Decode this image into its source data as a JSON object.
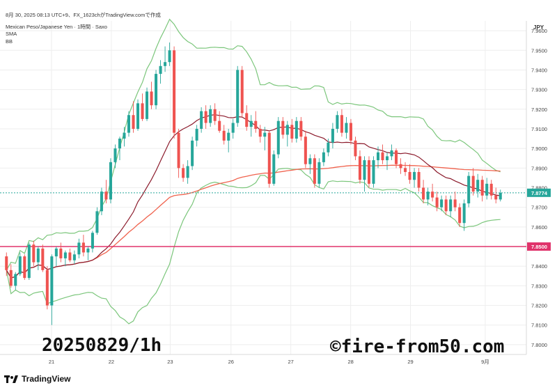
{
  "header": {
    "timestamp_line": "8月 30, 2025 08:13 UTC+9、FX_1623chがTradingView.comで作成",
    "symbol_line": "Mexican Peso/Japanese Yen · 1時間 · Saxo",
    "indicator_1": "SMA",
    "indicator_2": "BB"
  },
  "currency_label": "JPY",
  "overlay_text": {
    "left": "20250829/1h",
    "right": "©fire-from50.com"
  },
  "footer": {
    "brand": "TradingView"
  },
  "colors": {
    "up_candle": "#26a69a",
    "down_candle": "#ef5350",
    "sma_fast": "#8b1a2b",
    "sma_slow": "#f0624d",
    "bb_bands": "#7bc67b",
    "support_line": "#e0336b",
    "last_price_line": "#26a69a",
    "grid": "#eeeeee"
  },
  "chart_data": {
    "type": "candlestick",
    "y_ticks": [
      "7.9600",
      "7.9500",
      "7.9400",
      "7.9300",
      "7.9200",
      "7.9100",
      "7.9000",
      "7.8900",
      "7.8800",
      "7.8700",
      "7.8600",
      "7.8400",
      "7.8300",
      "7.8200",
      "7.8100",
      "7.8000"
    ],
    "ylim": [
      7.795,
      7.965
    ],
    "x_ticks": [
      {
        "label": "21",
        "pos": 0.095
      },
      {
        "label": "22",
        "pos": 0.215
      },
      {
        "label": "23",
        "pos": 0.333
      },
      {
        "label": "26",
        "pos": 0.455
      },
      {
        "label": "27",
        "pos": 0.575
      },
      {
        "label": "28",
        "pos": 0.695
      },
      {
        "label": "29",
        "pos": 0.815
      },
      {
        "label": "9月",
        "pos": 0.965
      }
    ],
    "last_price": {
      "label": "7.8774",
      "value": 7.8774
    },
    "support_level": {
      "label": "7.8500",
      "value": 7.85
    },
    "candles": [
      [
        7.845,
        7.847,
        7.835,
        7.838
      ],
      [
        7.838,
        7.841,
        7.829,
        7.83
      ],
      [
        7.83,
        7.837,
        7.828,
        7.836
      ],
      [
        7.836,
        7.847,
        7.835,
        7.845
      ],
      [
        7.845,
        7.846,
        7.833,
        7.834
      ],
      [
        7.834,
        7.852,
        7.833,
        7.851
      ],
      [
        7.851,
        7.853,
        7.84,
        7.842
      ],
      [
        7.842,
        7.85,
        7.838,
        7.849
      ],
      [
        7.849,
        7.851,
        7.837,
        7.838
      ],
      [
        7.838,
        7.84,
        7.818,
        7.82
      ],
      [
        7.82,
        7.846,
        7.81,
        7.845
      ],
      [
        7.845,
        7.85,
        7.84,
        7.849
      ],
      [
        7.849,
        7.852,
        7.842,
        7.844
      ],
      [
        7.844,
        7.848,
        7.84,
        7.847
      ],
      [
        7.847,
        7.849,
        7.842,
        7.843
      ],
      [
        7.843,
        7.848,
        7.841,
        7.846
      ],
      [
        7.846,
        7.854,
        7.844,
        7.852
      ],
      [
        7.852,
        7.856,
        7.845,
        7.847
      ],
      [
        7.847,
        7.85,
        7.843,
        7.849
      ],
      [
        7.849,
        7.858,
        7.847,
        7.857
      ],
      [
        7.857,
        7.87,
        7.856,
        7.868
      ],
      [
        7.868,
        7.88,
        7.866,
        7.878
      ],
      [
        7.878,
        7.884,
        7.872,
        7.874
      ],
      [
        7.874,
        7.895,
        7.872,
        7.893
      ],
      [
        7.893,
        7.902,
        7.89,
        7.9
      ],
      [
        7.9,
        7.906,
        7.894,
        7.905
      ],
      [
        7.905,
        7.911,
        7.901,
        7.908
      ],
      [
        7.908,
        7.919,
        7.906,
        7.917
      ],
      [
        7.917,
        7.924,
        7.908,
        7.91
      ],
      [
        7.91,
        7.925,
        7.909,
        7.923
      ],
      [
        7.923,
        7.928,
        7.914,
        7.915
      ],
      [
        7.915,
        7.931,
        7.914,
        7.929
      ],
      [
        7.929,
        7.934,
        7.92,
        7.922
      ],
      [
        7.922,
        7.94,
        7.92,
        7.938
      ],
      [
        7.938,
        7.945,
        7.933,
        7.942
      ],
      [
        7.942,
        7.952,
        7.939,
        7.944
      ],
      [
        7.944,
        7.954,
        7.942,
        7.95
      ],
      [
        7.95,
        7.952,
        7.905,
        7.908
      ],
      [
        7.908,
        7.91,
        7.885,
        7.89
      ],
      [
        7.89,
        7.892,
        7.883,
        7.885
      ],
      [
        7.885,
        7.894,
        7.882,
        7.891
      ],
      [
        7.891,
        7.906,
        7.889,
        7.904
      ],
      [
        7.904,
        7.912,
        7.901,
        7.91
      ],
      [
        7.91,
        7.921,
        7.908,
        7.919
      ],
      [
        7.919,
        7.922,
        7.91,
        7.913
      ],
      [
        7.913,
        7.922,
        7.911,
        7.92
      ],
      [
        7.92,
        7.923,
        7.912,
        7.914
      ],
      [
        7.914,
        7.919,
        7.908,
        7.909
      ],
      [
        7.909,
        7.912,
        7.902,
        7.904
      ],
      [
        7.904,
        7.91,
        7.898,
        7.908
      ],
      [
        7.908,
        7.915,
        7.905,
        7.913
      ],
      [
        7.913,
        7.942,
        7.911,
        7.94
      ],
      [
        7.94,
        7.942,
        7.916,
        7.918
      ],
      [
        7.918,
        7.922,
        7.909,
        7.911
      ],
      [
        7.911,
        7.917,
        7.906,
        7.914
      ],
      [
        7.914,
        7.919,
        7.908,
        7.91
      ],
      [
        7.91,
        7.912,
        7.903,
        7.906
      ],
      [
        7.906,
        7.911,
        7.899,
        7.908
      ],
      [
        7.908,
        7.909,
        7.88,
        7.882
      ],
      [
        7.882,
        7.899,
        7.881,
        7.897
      ],
      [
        7.897,
        7.916,
        7.895,
        7.914
      ],
      [
        7.914,
        7.916,
        7.905,
        7.907
      ],
      [
        7.907,
        7.914,
        7.901,
        7.912
      ],
      [
        7.912,
        7.915,
        7.903,
        7.905
      ],
      [
        7.905,
        7.916,
        7.903,
        7.914
      ],
      [
        7.914,
        7.916,
        7.904,
        7.906
      ],
      [
        7.906,
        7.909,
        7.89,
        7.892
      ],
      [
        7.892,
        7.897,
        7.887,
        7.895
      ],
      [
        7.895,
        7.897,
        7.88,
        7.882
      ],
      [
        7.882,
        7.895,
        7.88,
        7.893
      ],
      [
        7.893,
        7.9,
        7.891,
        7.898
      ],
      [
        7.898,
        7.905,
        7.896,
        7.903
      ],
      [
        7.903,
        7.913,
        7.9,
        7.91
      ],
      [
        7.91,
        7.919,
        7.908,
        7.917
      ],
      [
        7.917,
        7.92,
        7.906,
        7.908
      ],
      [
        7.908,
        7.916,
        7.905,
        7.913
      ],
      [
        7.913,
        7.915,
        7.902,
        7.904
      ],
      [
        7.904,
        7.906,
        7.894,
        7.896
      ],
      [
        7.896,
        7.899,
        7.882,
        7.884
      ],
      [
        7.884,
        7.896,
        7.878,
        7.894
      ],
      [
        7.894,
        7.896,
        7.88,
        7.882
      ],
      [
        7.882,
        7.896,
        7.88,
        7.894
      ],
      [
        7.894,
        7.901,
        7.89,
        7.898
      ],
      [
        7.898,
        7.902,
        7.892,
        7.894
      ],
      [
        7.894,
        7.898,
        7.889,
        7.896
      ],
      [
        7.896,
        7.902,
        7.894,
        7.899
      ],
      [
        7.899,
        7.9,
        7.89,
        7.892
      ],
      [
        7.892,
        7.895,
        7.887,
        7.89
      ],
      [
        7.89,
        7.893,
        7.886,
        7.888
      ],
      [
        7.888,
        7.892,
        7.882,
        7.884
      ],
      [
        7.884,
        7.89,
        7.88,
        7.888
      ],
      [
        7.888,
        7.89,
        7.878,
        7.88
      ],
      [
        7.88,
        7.884,
        7.872,
        7.874
      ],
      [
        7.874,
        7.88,
        7.871,
        7.878
      ],
      [
        7.878,
        7.882,
        7.873,
        7.875
      ],
      [
        7.875,
        7.878,
        7.868,
        7.87
      ],
      [
        7.87,
        7.876,
        7.868,
        7.874
      ],
      [
        7.874,
        7.876,
        7.866,
        7.868
      ],
      [
        7.868,
        7.876,
        7.865,
        7.874
      ],
      [
        7.874,
        7.878,
        7.868,
        7.87
      ],
      [
        7.87,
        7.872,
        7.86,
        7.862
      ],
      [
        7.862,
        7.874,
        7.858,
        7.872
      ],
      [
        7.872,
        7.888,
        7.87,
        7.886
      ],
      [
        7.886,
        7.89,
        7.876,
        7.878
      ],
      [
        7.878,
        7.887,
        7.875,
        7.884
      ],
      [
        7.884,
        7.886,
        7.873,
        7.876
      ],
      [
        7.876,
        7.885,
        7.874,
        7.882
      ],
      [
        7.882,
        7.884,
        7.874,
        7.876
      ],
      [
        7.876,
        7.88,
        7.872,
        7.874
      ],
      [
        7.874,
        7.879,
        7.873,
        7.8774
      ]
    ]
  }
}
